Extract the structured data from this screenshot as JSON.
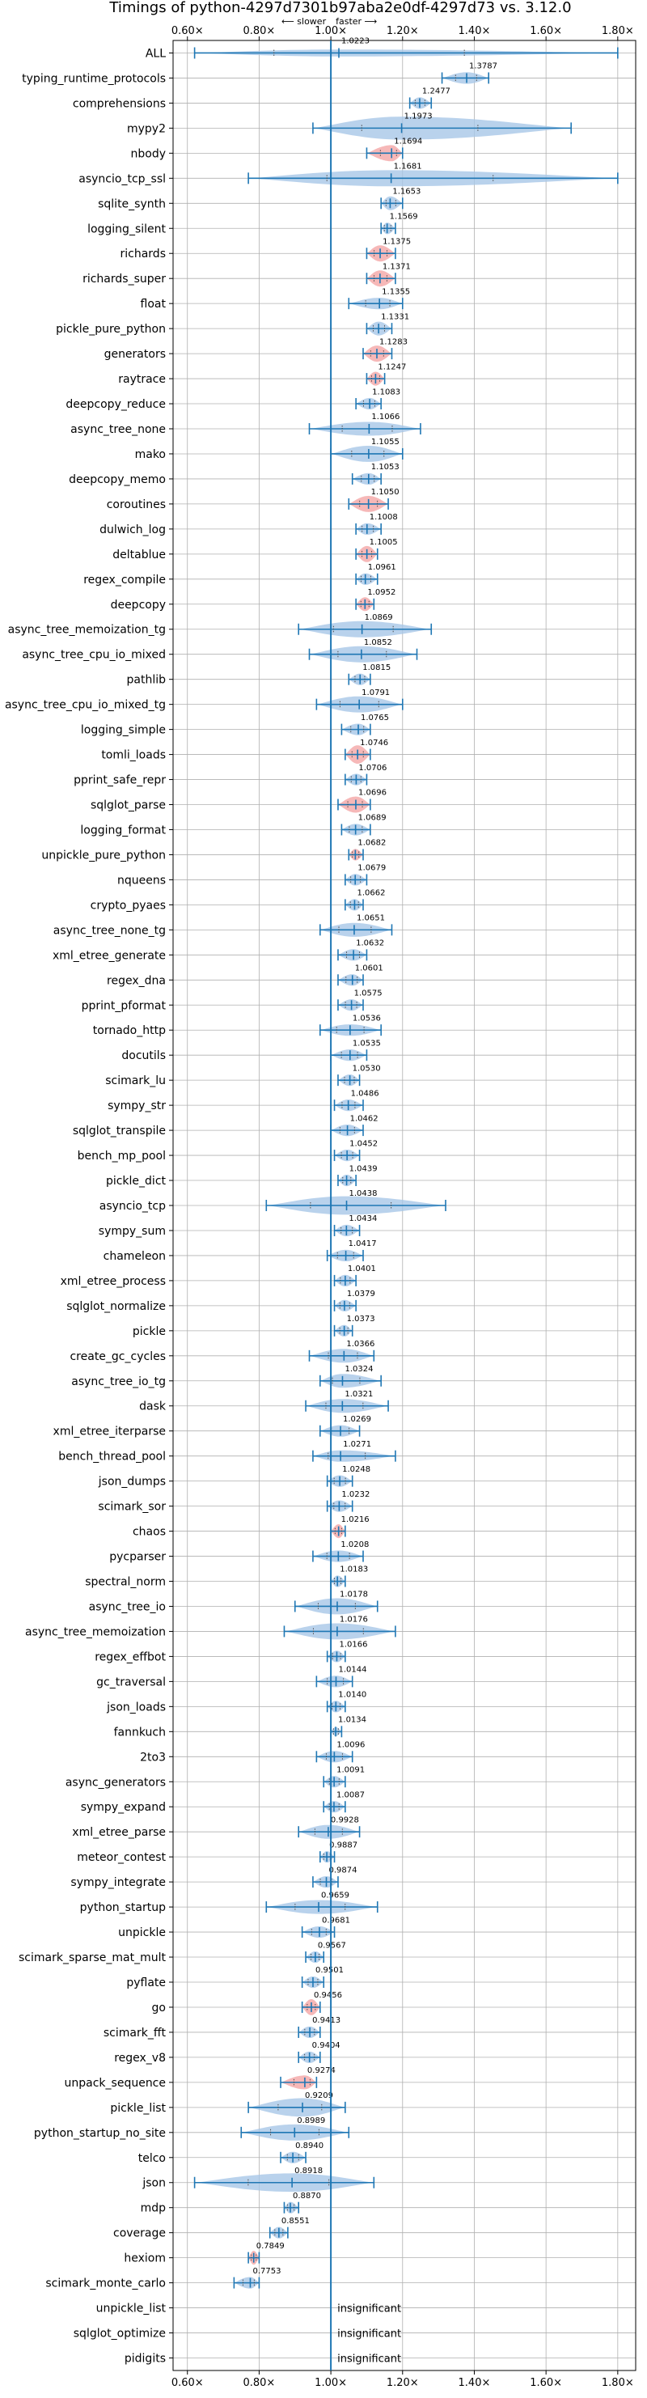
{
  "chart_data": {
    "type": "violin",
    "title": "Timings of python-4297d7301b97aba2e0df-4297d73 vs. 3.12.0",
    "direction_left": "⟵ slower",
    "direction_right": "faster ⟶",
    "x_ticks": [
      "0.60×",
      "0.80×",
      "1.00×",
      "1.20×",
      "1.40×",
      "1.60×",
      "1.80×"
    ],
    "x_tick_values": [
      0.6,
      0.8,
      1.0,
      1.2,
      1.4,
      1.6,
      1.8
    ],
    "xlim": [
      0.56,
      1.85
    ],
    "reference_line": 1.0,
    "insignificant_label": "insignificant",
    "colors": {
      "violin": "#a7c7e7",
      "highlight": "#f4a6a6",
      "line": "#1f77b4",
      "grid": "#b0b0b0"
    },
    "benchmarks": [
      {
        "name": "ALL",
        "value": 1.0223,
        "label": "1.0223",
        "lo": 0.62,
        "hi": 1.8,
        "w": 0.3,
        "hl": false
      },
      {
        "name": "typing_runtime_protocols",
        "value": 1.3787,
        "label": "1.3787",
        "lo": 1.31,
        "hi": 1.44,
        "w": 0.5,
        "hl": false
      },
      {
        "name": "comprehensions",
        "value": 1.2477,
        "label": "1.2477",
        "lo": 1.22,
        "hi": 1.28,
        "w": 0.5,
        "hl": false
      },
      {
        "name": "mypy2",
        "value": 1.1973,
        "label": "1.1973",
        "lo": 0.95,
        "hi": 1.67,
        "w": 1.0,
        "hl": false
      },
      {
        "name": "nbody",
        "value": 1.1694,
        "label": "1.1694",
        "lo": 1.1,
        "hi": 1.2,
        "w": 0.7,
        "hl": true
      },
      {
        "name": "asyncio_tcp_ssl",
        "value": 1.1681,
        "label": "1.1681",
        "lo": 0.77,
        "hi": 1.8,
        "w": 0.7,
        "hl": false
      },
      {
        "name": "sqlite_synth",
        "value": 1.1653,
        "label": "1.1653",
        "lo": 1.14,
        "hi": 1.2,
        "w": 0.6,
        "hl": false
      },
      {
        "name": "logging_silent",
        "value": 1.1569,
        "label": "1.1569",
        "lo": 1.14,
        "hi": 1.18,
        "w": 0.5,
        "hl": false
      },
      {
        "name": "richards",
        "value": 1.1375,
        "label": "1.1375",
        "lo": 1.1,
        "hi": 1.18,
        "w": 0.7,
        "hl": true
      },
      {
        "name": "richards_super",
        "value": 1.1371,
        "label": "1.1371",
        "lo": 1.1,
        "hi": 1.18,
        "w": 0.7,
        "hl": true
      },
      {
        "name": "float",
        "value": 1.1355,
        "label": "1.1355",
        "lo": 1.05,
        "hi": 1.2,
        "w": 0.5,
        "hl": false
      },
      {
        "name": "pickle_pure_python",
        "value": 1.1331,
        "label": "1.1331",
        "lo": 1.1,
        "hi": 1.17,
        "w": 0.6,
        "hl": false
      },
      {
        "name": "generators",
        "value": 1.1283,
        "label": "1.1283",
        "lo": 1.09,
        "hi": 1.17,
        "w": 0.7,
        "hl": true
      },
      {
        "name": "raytrace",
        "value": 1.1247,
        "label": "1.1247",
        "lo": 1.1,
        "hi": 1.15,
        "w": 0.6,
        "hl": true
      },
      {
        "name": "deepcopy_reduce",
        "value": 1.1083,
        "label": "1.1083",
        "lo": 1.07,
        "hi": 1.14,
        "w": 0.5,
        "hl": false
      },
      {
        "name": "async_tree_none",
        "value": 1.1066,
        "label": "1.1066",
        "lo": 0.94,
        "hi": 1.25,
        "w": 0.6,
        "hl": false
      },
      {
        "name": "mako",
        "value": 1.1055,
        "label": "1.1055",
        "lo": 1.0,
        "hi": 1.2,
        "w": 0.7,
        "hl": false
      },
      {
        "name": "deepcopy_memo",
        "value": 1.1053,
        "label": "1.1053",
        "lo": 1.06,
        "hi": 1.14,
        "w": 0.5,
        "hl": false
      },
      {
        "name": "coroutines",
        "value": 1.105,
        "label": "1.1050",
        "lo": 1.05,
        "hi": 1.16,
        "w": 0.7,
        "hl": true
      },
      {
        "name": "dulwich_log",
        "value": 1.1008,
        "label": "1.1008",
        "lo": 1.07,
        "hi": 1.14,
        "w": 0.5,
        "hl": false
      },
      {
        "name": "deltablue",
        "value": 1.1005,
        "label": "1.1005",
        "lo": 1.07,
        "hi": 1.13,
        "w": 0.7,
        "hl": true
      },
      {
        "name": "regex_compile",
        "value": 1.0961,
        "label": "1.0961",
        "lo": 1.07,
        "hi": 1.13,
        "w": 0.5,
        "hl": false
      },
      {
        "name": "deepcopy",
        "value": 1.0952,
        "label": "1.0952",
        "lo": 1.07,
        "hi": 1.12,
        "w": 0.6,
        "hl": true
      },
      {
        "name": "async_tree_memoization_tg",
        "value": 1.0869,
        "label": "1.0869",
        "lo": 0.91,
        "hi": 1.28,
        "w": 0.7,
        "hl": false
      },
      {
        "name": "async_tree_cpu_io_mixed",
        "value": 1.0852,
        "label": "1.0852",
        "lo": 0.94,
        "hi": 1.24,
        "w": 0.7,
        "hl": false
      },
      {
        "name": "pathlib",
        "value": 1.0815,
        "label": "1.0815",
        "lo": 1.05,
        "hi": 1.11,
        "w": 0.5,
        "hl": false
      },
      {
        "name": "async_tree_cpu_io_mixed_tg",
        "value": 1.0791,
        "label": "1.0791",
        "lo": 0.96,
        "hi": 1.2,
        "w": 0.7,
        "hl": false
      },
      {
        "name": "logging_simple",
        "value": 1.0765,
        "label": "1.0765",
        "lo": 1.03,
        "hi": 1.11,
        "w": 0.5,
        "hl": false
      },
      {
        "name": "tomli_loads",
        "value": 1.0746,
        "label": "1.0746",
        "lo": 1.04,
        "hi": 1.11,
        "w": 0.8,
        "hl": true
      },
      {
        "name": "pprint_safe_repr",
        "value": 1.0706,
        "label": "1.0706",
        "lo": 1.04,
        "hi": 1.1,
        "w": 0.5,
        "hl": false
      },
      {
        "name": "sqlglot_parse",
        "value": 1.0696,
        "label": "1.0696",
        "lo": 1.02,
        "hi": 1.11,
        "w": 0.7,
        "hl": true
      },
      {
        "name": "logging_format",
        "value": 1.0689,
        "label": "1.0689",
        "lo": 1.03,
        "hi": 1.11,
        "w": 0.5,
        "hl": false
      },
      {
        "name": "unpickle_pure_python",
        "value": 1.0682,
        "label": "1.0682",
        "lo": 1.05,
        "hi": 1.09,
        "w": 0.5,
        "hl": true
      },
      {
        "name": "nqueens",
        "value": 1.0679,
        "label": "1.0679",
        "lo": 1.04,
        "hi": 1.1,
        "w": 0.5,
        "hl": false
      },
      {
        "name": "crypto_pyaes",
        "value": 1.0662,
        "label": "1.0662",
        "lo": 1.04,
        "hi": 1.09,
        "w": 0.5,
        "hl": false
      },
      {
        "name": "async_tree_none_tg",
        "value": 1.0651,
        "label": "1.0651",
        "lo": 0.97,
        "hi": 1.17,
        "w": 0.6,
        "hl": false
      },
      {
        "name": "xml_etree_generate",
        "value": 1.0632,
        "label": "1.0632",
        "lo": 1.02,
        "hi": 1.1,
        "w": 0.5,
        "hl": false
      },
      {
        "name": "regex_dna",
        "value": 1.0601,
        "label": "1.0601",
        "lo": 1.02,
        "hi": 1.09,
        "w": 0.5,
        "hl": false
      },
      {
        "name": "pprint_pformat",
        "value": 1.0575,
        "label": "1.0575",
        "lo": 1.02,
        "hi": 1.09,
        "w": 0.5,
        "hl": false
      },
      {
        "name": "tornado_http",
        "value": 1.0536,
        "label": "1.0536",
        "lo": 0.97,
        "hi": 1.14,
        "w": 0.5,
        "hl": false
      },
      {
        "name": "docutils",
        "value": 1.0535,
        "label": "1.0535",
        "lo": 1.0,
        "hi": 1.1,
        "w": 0.5,
        "hl": false
      },
      {
        "name": "scimark_lu",
        "value": 1.053,
        "label": "1.0530",
        "lo": 1.02,
        "hi": 1.08,
        "w": 0.5,
        "hl": false
      },
      {
        "name": "sympy_str",
        "value": 1.0486,
        "label": "1.0486",
        "lo": 1.01,
        "hi": 1.09,
        "w": 0.5,
        "hl": false
      },
      {
        "name": "sqlglot_transpile",
        "value": 1.0462,
        "label": "1.0462",
        "lo": 1.0,
        "hi": 1.09,
        "w": 0.5,
        "hl": false
      },
      {
        "name": "bench_mp_pool",
        "value": 1.0452,
        "label": "1.0452",
        "lo": 1.01,
        "hi": 1.08,
        "w": 0.5,
        "hl": false
      },
      {
        "name": "pickle_dict",
        "value": 1.0439,
        "label": "1.0439",
        "lo": 1.02,
        "hi": 1.07,
        "w": 0.5,
        "hl": false
      },
      {
        "name": "asyncio_tcp",
        "value": 1.0438,
        "label": "1.0438",
        "lo": 0.82,
        "hi": 1.32,
        "w": 0.8,
        "hl": false
      },
      {
        "name": "sympy_sum",
        "value": 1.0434,
        "label": "1.0434",
        "lo": 1.01,
        "hi": 1.08,
        "w": 0.5,
        "hl": false
      },
      {
        "name": "chameleon",
        "value": 1.0417,
        "label": "1.0417",
        "lo": 0.99,
        "hi": 1.09,
        "w": 0.5,
        "hl": false
      },
      {
        "name": "xml_etree_process",
        "value": 1.0401,
        "label": "1.0401",
        "lo": 1.01,
        "hi": 1.07,
        "w": 0.5,
        "hl": false
      },
      {
        "name": "sqlglot_normalize",
        "value": 1.0379,
        "label": "1.0379",
        "lo": 1.01,
        "hi": 1.07,
        "w": 0.5,
        "hl": false
      },
      {
        "name": "pickle",
        "value": 1.0373,
        "label": "1.0373",
        "lo": 1.01,
        "hi": 1.06,
        "w": 0.5,
        "hl": false
      },
      {
        "name": "create_gc_cycles",
        "value": 1.0366,
        "label": "1.0366",
        "lo": 0.94,
        "hi": 1.12,
        "w": 0.6,
        "hl": false
      },
      {
        "name": "async_tree_io_tg",
        "value": 1.0324,
        "label": "1.0324",
        "lo": 0.97,
        "hi": 1.14,
        "w": 0.6,
        "hl": false
      },
      {
        "name": "dask",
        "value": 1.0321,
        "label": "1.0321",
        "lo": 0.93,
        "hi": 1.16,
        "w": 0.6,
        "hl": false
      },
      {
        "name": "xml_etree_iterparse",
        "value": 1.0269,
        "label": "1.0269",
        "lo": 0.97,
        "hi": 1.08,
        "w": 0.5,
        "hl": false
      },
      {
        "name": "bench_thread_pool",
        "value": 1.0271,
        "label": "1.0271",
        "lo": 0.95,
        "hi": 1.18,
        "w": 0.5,
        "hl": false
      },
      {
        "name": "json_dumps",
        "value": 1.0248,
        "label": "1.0248",
        "lo": 0.99,
        "hi": 1.06,
        "w": 0.5,
        "hl": false
      },
      {
        "name": "scimark_sor",
        "value": 1.0232,
        "label": "1.0232",
        "lo": 0.99,
        "hi": 1.06,
        "w": 0.5,
        "hl": false
      },
      {
        "name": "chaos",
        "value": 1.0216,
        "label": "1.0216",
        "lo": 1.0,
        "hi": 1.04,
        "w": 0.6,
        "hl": true
      },
      {
        "name": "pycparser",
        "value": 1.0208,
        "label": "1.0208",
        "lo": 0.95,
        "hi": 1.09,
        "w": 0.5,
        "hl": false
      },
      {
        "name": "spectral_norm",
        "value": 1.0183,
        "label": "1.0183",
        "lo": 1.0,
        "hi": 1.04,
        "w": 0.5,
        "hl": false
      },
      {
        "name": "async_tree_io",
        "value": 1.0178,
        "label": "1.0178",
        "lo": 0.9,
        "hi": 1.13,
        "w": 0.7,
        "hl": false
      },
      {
        "name": "async_tree_memoization",
        "value": 1.0176,
        "label": "1.0176",
        "lo": 0.87,
        "hi": 1.18,
        "w": 0.7,
        "hl": false
      },
      {
        "name": "regex_effbot",
        "value": 1.0166,
        "label": "1.0166",
        "lo": 0.99,
        "hi": 1.04,
        "w": 0.5,
        "hl": false
      },
      {
        "name": "gc_traversal",
        "value": 1.0144,
        "label": "1.0144",
        "lo": 0.96,
        "hi": 1.06,
        "w": 0.5,
        "hl": false
      },
      {
        "name": "json_loads",
        "value": 1.014,
        "label": "1.0140",
        "lo": 0.99,
        "hi": 1.04,
        "w": 0.5,
        "hl": false
      },
      {
        "name": "fannkuch",
        "value": 1.0134,
        "label": "1.0134",
        "lo": 1.0,
        "hi": 1.03,
        "w": 0.4,
        "hl": false
      },
      {
        "name": "2to3",
        "value": 1.0096,
        "label": "1.0096",
        "lo": 0.96,
        "hi": 1.06,
        "w": 0.5,
        "hl": false
      },
      {
        "name": "async_generators",
        "value": 1.0091,
        "label": "1.0091",
        "lo": 0.98,
        "hi": 1.04,
        "w": 0.5,
        "hl": false
      },
      {
        "name": "sympy_expand",
        "value": 1.0087,
        "label": "1.0087",
        "lo": 0.98,
        "hi": 1.04,
        "w": 0.5,
        "hl": false
      },
      {
        "name": "xml_etree_parse",
        "value": 0.9928,
        "label": "0.9928",
        "lo": 0.91,
        "hi": 1.08,
        "w": 0.6,
        "hl": false
      },
      {
        "name": "meteor_contest",
        "value": 0.9887,
        "label": "0.9887",
        "lo": 0.97,
        "hi": 1.01,
        "w": 0.5,
        "hl": false
      },
      {
        "name": "sympy_integrate",
        "value": 0.9874,
        "label": "0.9874",
        "lo": 0.95,
        "hi": 1.02,
        "w": 0.5,
        "hl": false
      },
      {
        "name": "python_startup",
        "value": 0.9659,
        "label": "0.9659",
        "lo": 0.82,
        "hi": 1.13,
        "w": 0.6,
        "hl": false
      },
      {
        "name": "unpickle",
        "value": 0.9681,
        "label": "0.9681",
        "lo": 0.92,
        "hi": 1.01,
        "w": 0.5,
        "hl": false
      },
      {
        "name": "scimark_sparse_mat_mult",
        "value": 0.9567,
        "label": "0.9567",
        "lo": 0.93,
        "hi": 0.98,
        "w": 0.5,
        "hl": false
      },
      {
        "name": "pyflate",
        "value": 0.9501,
        "label": "0.9501",
        "lo": 0.92,
        "hi": 0.98,
        "w": 0.5,
        "hl": false
      },
      {
        "name": "go",
        "value": 0.9456,
        "label": "0.9456",
        "lo": 0.92,
        "hi": 0.97,
        "w": 0.7,
        "hl": true
      },
      {
        "name": "scimark_fft",
        "value": 0.9413,
        "label": "0.9413",
        "lo": 0.91,
        "hi": 0.97,
        "w": 0.5,
        "hl": false
      },
      {
        "name": "regex_v8",
        "value": 0.9404,
        "label": "0.9404",
        "lo": 0.91,
        "hi": 0.97,
        "w": 0.5,
        "hl": false
      },
      {
        "name": "unpack_sequence",
        "value": 0.9274,
        "label": "0.9274",
        "lo": 0.86,
        "hi": 0.96,
        "w": 0.6,
        "hl": true
      },
      {
        "name": "pickle_list",
        "value": 0.9209,
        "label": "0.9209",
        "lo": 0.77,
        "hi": 1.04,
        "w": 0.8,
        "hl": false
      },
      {
        "name": "python_startup_no_site",
        "value": 0.8989,
        "label": "0.8989",
        "lo": 0.75,
        "hi": 1.05,
        "w": 0.7,
        "hl": false
      },
      {
        "name": "telco",
        "value": 0.894,
        "label": "0.8940",
        "lo": 0.86,
        "hi": 0.93,
        "w": 0.5,
        "hl": false
      },
      {
        "name": "json",
        "value": 0.8918,
        "label": "0.8918",
        "lo": 0.62,
        "hi": 1.12,
        "w": 0.8,
        "hl": false
      },
      {
        "name": "mdp",
        "value": 0.887,
        "label": "0.8870",
        "lo": 0.87,
        "hi": 0.91,
        "w": 0.5,
        "hl": false
      },
      {
        "name": "coverage",
        "value": 0.8551,
        "label": "0.8551",
        "lo": 0.83,
        "hi": 0.88,
        "w": 0.5,
        "hl": false
      },
      {
        "name": "hexiom",
        "value": 0.7849,
        "label": "0.7849",
        "lo": 0.77,
        "hi": 0.8,
        "w": 0.6,
        "hl": true
      },
      {
        "name": "scimark_monte_carlo",
        "value": 0.7753,
        "label": "0.7753",
        "lo": 0.73,
        "hi": 0.8,
        "w": 0.5,
        "hl": false
      },
      {
        "name": "unpickle_list",
        "insignificant": true
      },
      {
        "name": "sqlglot_optimize",
        "insignificant": true
      },
      {
        "name": "pidigits",
        "insignificant": true
      }
    ]
  }
}
